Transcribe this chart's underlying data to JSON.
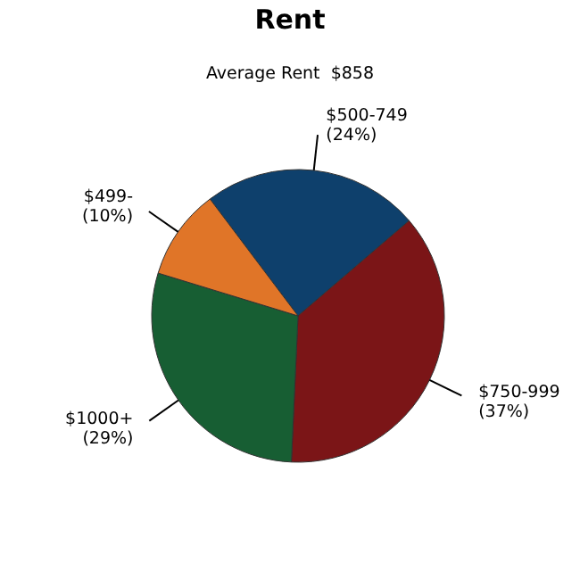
{
  "chart_data": {
    "type": "pie",
    "title": "Rent",
    "subtitle": "Average Rent  $858",
    "categories": [
      "$500-749",
      "$750-999",
      "$1000+",
      "$499-"
    ],
    "values": [
      24,
      37,
      29,
      10
    ],
    "value_labels": [
      "(24%)",
      "(37%)",
      "(29%)",
      "(10%)"
    ],
    "colors": [
      "#0e406c",
      "#7b1517",
      "#175e33",
      "#e07528"
    ],
    "legend": false
  }
}
